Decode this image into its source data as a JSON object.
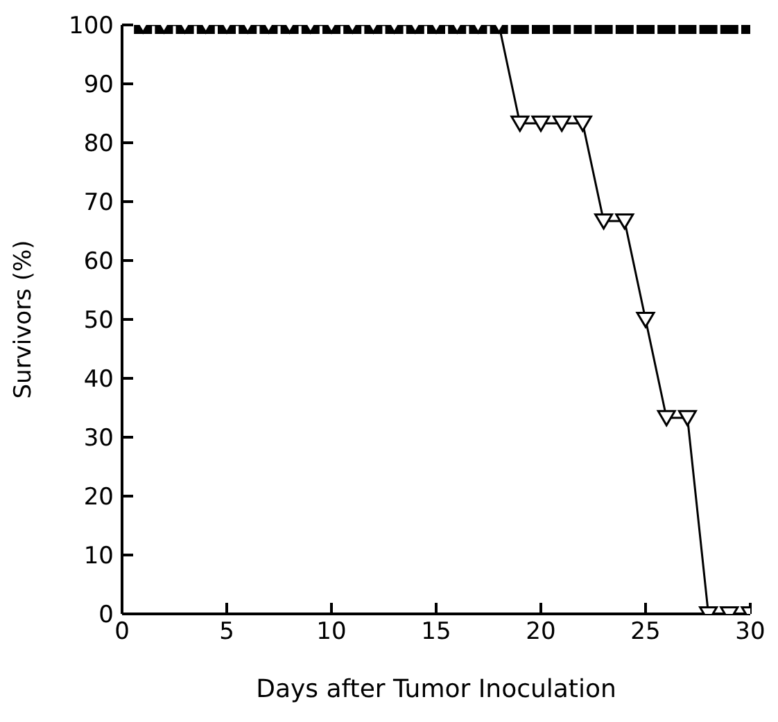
{
  "chart_data": {
    "type": "line",
    "xlabel": "Days after Tumor Inoculation",
    "ylabel": "Survivors (%)",
    "x": [
      1,
      2,
      3,
      4,
      5,
      6,
      7,
      8,
      9,
      10,
      11,
      12,
      13,
      14,
      15,
      16,
      17,
      18,
      19,
      20,
      21,
      22,
      23,
      24,
      25,
      26,
      27,
      28,
      29,
      30
    ],
    "xlim": [
      0,
      30
    ],
    "xticks": [
      0,
      5,
      10,
      15,
      20,
      25,
      30
    ],
    "ylim": [
      0,
      100
    ],
    "yticks": [
      0,
      10,
      20,
      30,
      40,
      50,
      60,
      70,
      80,
      90,
      100
    ],
    "grid": false,
    "legend": false,
    "line_style": "solid",
    "series": [
      {
        "type": "scatter",
        "color": "#000000",
        "marker": "square",
        "values": [
          100,
          100,
          100,
          100,
          100,
          100,
          100,
          100,
          100,
          100,
          100,
          100,
          100,
          100,
          100,
          100,
          100,
          100,
          100,
          100,
          100,
          100,
          100,
          100,
          100,
          100,
          100,
          100,
          100,
          100
        ]
      },
      {
        "color": "#000000",
        "marker": "triangle",
        "values": [
          100,
          100,
          100,
          100,
          100,
          100,
          100,
          100,
          100,
          100,
          100,
          100,
          100,
          100,
          100,
          100,
          100,
          100,
          83.3,
          83.3,
          83.3,
          83.3,
          66.7,
          66.7,
          50,
          33.3,
          33.3,
          0,
          0,
          0
        ]
      }
    ]
  }
}
